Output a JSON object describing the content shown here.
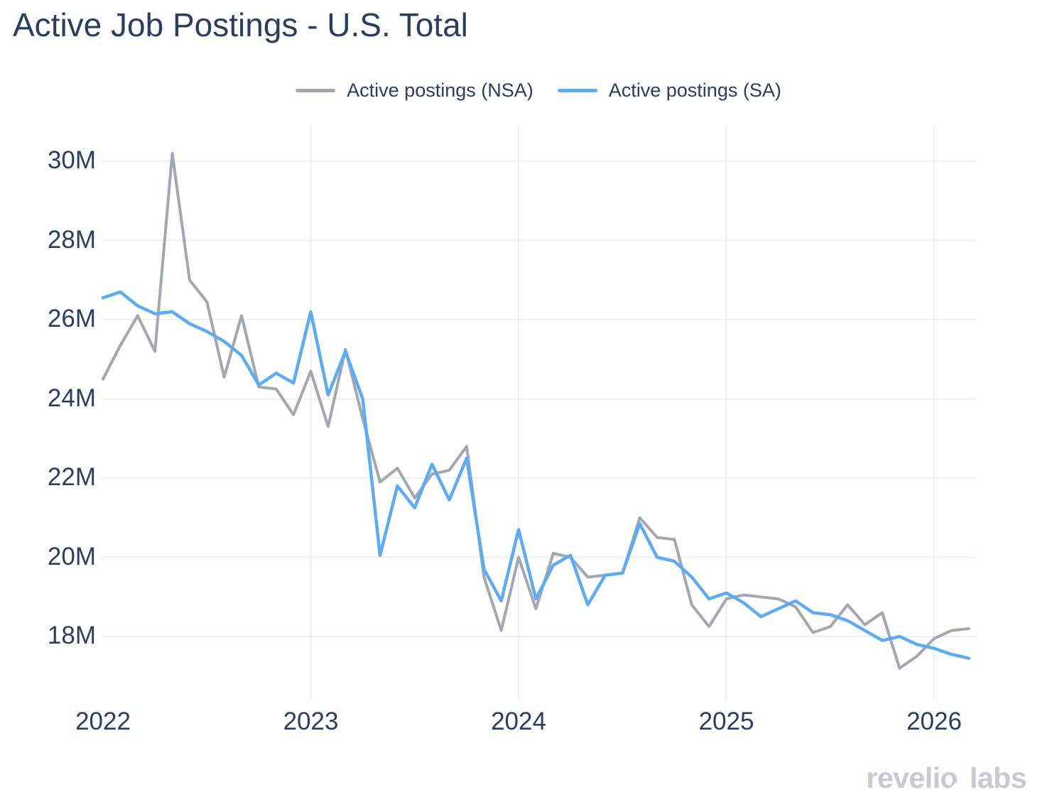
{
  "title": "Active Job Postings - U.S. Total",
  "watermark": "revelio labs",
  "colors": {
    "title_text": "#2a3f5f",
    "tick_text": "#2a3f5f",
    "gridline": "#e9ebf0",
    "nsa_line": "#a2a7b3",
    "sa_line": "#5dacf2",
    "background": "#ffffff",
    "watermark_text": "#c7cad3"
  },
  "legend": [
    {
      "id": "nsa",
      "label": "Active postings (NSA)",
      "color": "#a2a7b3"
    },
    {
      "id": "sa",
      "label": "Active postings (SA)",
      "color": "#5dacf2"
    }
  ],
  "chart_data": {
    "type": "line",
    "title": "Active Job Postings - U.S. Total",
    "xlabel": "",
    "ylabel": "",
    "x_unit": "month",
    "x_start": "2022-01",
    "x_end": "2026-03",
    "x_tick_labels": [
      "2022",
      "2023",
      "2024",
      "2025",
      "2026"
    ],
    "y_ticks": [
      18,
      20,
      22,
      24,
      26,
      28,
      30
    ],
    "y_tick_labels": [
      "18M",
      "20M",
      "22M",
      "24M",
      "26M",
      "28M",
      "30M"
    ],
    "ylim_millions": [
      16.4,
      30.9
    ],
    "grid": "on",
    "legend_position": "top-center",
    "series": [
      {
        "id": "nsa",
        "name": "Active postings (NSA)",
        "color": "#a2a7b3",
        "width": 4,
        "unit": "millions",
        "values": [
          24.5,
          25.35,
          26.1,
          25.2,
          30.2,
          27.0,
          26.45,
          24.55,
          26.1,
          24.3,
          24.25,
          23.6,
          24.7,
          23.3,
          25.25,
          23.5,
          21.9,
          22.25,
          21.5,
          22.1,
          22.2,
          22.8,
          19.5,
          18.15,
          20.0,
          18.7,
          20.1,
          20.0,
          19.5,
          19.55,
          19.6,
          21.0,
          20.5,
          20.45,
          18.8,
          18.25,
          18.95,
          19.05,
          19.0,
          18.95,
          18.75,
          18.1,
          18.25,
          18.8,
          18.3,
          18.6,
          17.2,
          17.5,
          17.95,
          18.15,
          18.2
        ]
      },
      {
        "id": "sa",
        "name": "Active postings (SA)",
        "color": "#5dacf2",
        "width": 4.5,
        "unit": "millions",
        "values": [
          26.55,
          26.7,
          26.35,
          26.15,
          26.2,
          25.9,
          25.7,
          25.45,
          25.1,
          24.35,
          24.65,
          24.4,
          26.2,
          24.1,
          25.2,
          24.0,
          20.05,
          21.8,
          21.25,
          22.35,
          21.45,
          22.5,
          19.7,
          18.9,
          20.7,
          18.95,
          19.8,
          20.05,
          18.8,
          19.55,
          19.6,
          20.85,
          20.0,
          19.9,
          19.5,
          18.95,
          19.1,
          18.85,
          18.5,
          18.7,
          18.9,
          18.6,
          18.55,
          18.4,
          18.15,
          17.9,
          18.0,
          17.8,
          17.7,
          17.55,
          17.45
        ]
      }
    ]
  }
}
